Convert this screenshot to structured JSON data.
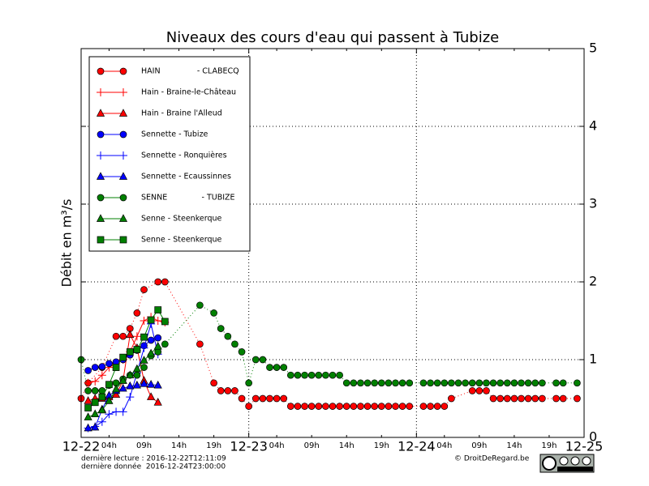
{
  "chart_data": {
    "type": "line",
    "title": "Niveaux des cours d'eau qui passent à Tubize",
    "ylabel": "Débit en m³/s",
    "xlim": [
      0,
      72
    ],
    "ylim": [
      0,
      5
    ],
    "xticks": [
      {
        "value": 0,
        "label": "12-22"
      },
      {
        "value": 24,
        "label": "12-23"
      },
      {
        "value": 48,
        "label": "12-24"
      },
      {
        "value": 72,
        "label": "12-25"
      }
    ],
    "xminorticks": [
      {
        "value": 4,
        "label": "04h"
      },
      {
        "value": 9,
        "label": "09h"
      },
      {
        "value": 14,
        "label": "14h"
      },
      {
        "value": 19,
        "label": "19h"
      },
      {
        "value": 28,
        "label": "04h"
      },
      {
        "value": 33,
        "label": "09h"
      },
      {
        "value": 38,
        "label": "14h"
      },
      {
        "value": 43,
        "label": "19h"
      },
      {
        "value": 52,
        "label": "04h"
      },
      {
        "value": 57,
        "label": "09h"
      },
      {
        "value": 62,
        "label": "14h"
      },
      {
        "value": 67,
        "label": "19h"
      }
    ],
    "yticks": [
      0,
      1,
      2,
      3,
      4,
      5
    ],
    "grid": true,
    "legend": "upper left",
    "series": [
      {
        "name": "HAIN               - CLABECQ",
        "color": "#ff0000",
        "marker": "o",
        "linestyle": "dotted",
        "x": [
          0,
          1,
          3,
          5,
          6,
          7,
          8,
          9,
          11,
          12,
          17,
          19,
          20,
          21,
          22,
          23,
          24,
          25,
          26,
          27,
          28,
          29,
          30,
          31,
          32,
          33,
          34,
          35,
          36,
          37,
          38,
          39,
          40,
          41,
          42,
          43,
          44,
          45,
          46,
          47,
          49,
          50,
          51,
          52,
          53,
          56,
          57,
          58,
          59,
          60,
          61,
          62,
          63,
          64,
          65,
          66,
          68,
          69,
          71
        ],
        "values": [
          0.5,
          0.7,
          0.9,
          1.3,
          1.3,
          1.4,
          1.6,
          1.9,
          2.0,
          2.0,
          1.2,
          0.7,
          0.6,
          0.6,
          0.6,
          0.5,
          0.4,
          0.5,
          0.5,
          0.5,
          0.5,
          0.5,
          0.4,
          0.4,
          0.4,
          0.4,
          0.4,
          0.4,
          0.4,
          0.4,
          0.4,
          0.4,
          0.4,
          0.4,
          0.4,
          0.4,
          0.4,
          0.4,
          0.4,
          0.4,
          0.4,
          0.4,
          0.4,
          0.4,
          0.5,
          0.6,
          0.6,
          0.6,
          0.5,
          0.5,
          0.5,
          0.5,
          0.5,
          0.5,
          0.5,
          0.5,
          0.5,
          0.5,
          0.5
        ]
      },
      {
        "name": "Hain - Braine-le-Château",
        "color": "#ff0000",
        "marker": "+",
        "linestyle": "solid",
        "x": [
          1,
          2,
          3,
          4,
          5,
          6,
          7,
          8,
          9,
          10,
          11,
          12
        ],
        "values": [
          0.7,
          0.72,
          0.8,
          0.9,
          0.95,
          1.0,
          1.1,
          1.3,
          1.5,
          1.55,
          1.5,
          1.48
        ]
      },
      {
        "name": "Hain - Braine l'Alleud",
        "color": "#ff0000",
        "marker": "^",
        "linestyle": "solid",
        "x": [
          1,
          2,
          3,
          4,
          5,
          6,
          7,
          8,
          9,
          10,
          11
        ],
        "values": [
          0.47,
          0.5,
          0.5,
          0.52,
          0.55,
          0.73,
          1.32,
          1.15,
          0.73,
          0.52,
          0.45
        ]
      },
      {
        "name": "Sennette - Tubize",
        "color": "#0000ff",
        "marker": "o",
        "linestyle": "solid",
        "x": [
          1,
          2,
          3,
          4,
          5,
          6,
          7,
          8,
          9,
          10,
          11
        ],
        "values": [
          0.86,
          0.9,
          0.91,
          0.95,
          0.97,
          1.0,
          1.06,
          1.12,
          1.18,
          1.25,
          1.28
        ]
      },
      {
        "name": "Sennette - Ronquières",
        "color": "#0000ff",
        "marker": "+",
        "linestyle": "solid",
        "x": [
          1,
          2,
          3,
          4,
          5,
          6,
          7,
          8,
          9,
          10,
          11
        ],
        "values": [
          0.12,
          0.14,
          0.2,
          0.3,
          0.33,
          0.33,
          0.52,
          0.83,
          1.15,
          1.46,
          1.07
        ]
      },
      {
        "name": "Sennette - Ecaussinnes",
        "color": "#0000ff",
        "marker": "^",
        "linestyle": "solid",
        "x": [
          1,
          2,
          3,
          4,
          5,
          6,
          7,
          8,
          9,
          10,
          11
        ],
        "values": [
          0.12,
          0.13,
          0.36,
          0.54,
          0.6,
          0.63,
          0.66,
          0.67,
          0.69,
          0.68,
          0.67
        ]
      },
      {
        "name": "SENNE              - TUBIZE",
        "color": "#008000",
        "marker": "o",
        "linestyle": "dotted",
        "x": [
          0,
          1,
          2,
          3,
          4,
          5,
          6,
          7,
          8,
          9,
          10,
          11,
          12,
          17,
          19,
          20,
          21,
          22,
          23,
          24,
          25,
          26,
          27,
          28,
          29,
          30,
          31,
          32,
          33,
          34,
          35,
          36,
          37,
          38,
          39,
          40,
          41,
          42,
          43,
          44,
          45,
          46,
          47,
          49,
          50,
          51,
          52,
          53,
          54,
          55,
          56,
          57,
          58,
          59,
          60,
          61,
          62,
          63,
          64,
          65,
          66,
          68,
          69,
          71
        ],
        "values": [
          1.0,
          0.6,
          0.6,
          0.6,
          0.67,
          0.7,
          0.75,
          0.8,
          0.8,
          0.9,
          1.05,
          1.1,
          1.2,
          1.7,
          1.6,
          1.4,
          1.3,
          1.2,
          1.1,
          0.7,
          1.0,
          1.0,
          0.9,
          0.9,
          0.9,
          0.8,
          0.8,
          0.8,
          0.8,
          0.8,
          0.8,
          0.8,
          0.8,
          0.7,
          0.7,
          0.7,
          0.7,
          0.7,
          0.7,
          0.7,
          0.7,
          0.7,
          0.7,
          0.7,
          0.7,
          0.7,
          0.7,
          0.7,
          0.7,
          0.7,
          0.7,
          0.7,
          0.7,
          0.7,
          0.7,
          0.7,
          0.7,
          0.7,
          0.7,
          0.7,
          0.7,
          0.7,
          0.7,
          0.7
        ]
      },
      {
        "name": "Senne - Steenkerque",
        "color": "#008000",
        "marker": "^",
        "linestyle": "solid",
        "x": [
          1,
          2,
          3,
          4,
          5,
          6,
          7,
          8,
          9,
          10,
          11
        ],
        "values": [
          0.26,
          0.3,
          0.35,
          0.47,
          0.62,
          0.73,
          0.8,
          0.88,
          0.99,
          1.08,
          1.17
        ]
      },
      {
        "name": "Senne - Steenkerque",
        "color": "#008000",
        "marker": "s",
        "linestyle": "solid",
        "x": [
          1,
          2,
          3,
          4,
          5,
          6,
          7,
          8,
          9,
          10,
          11,
          12
        ],
        "values": [
          0.38,
          0.45,
          0.52,
          0.68,
          0.9,
          1.03,
          1.1,
          1.13,
          1.29,
          1.51,
          1.64,
          1.49
        ]
      }
    ]
  },
  "footer": {
    "last_read": "dernière lecture : 2016-12-22T12:11:09",
    "last_data": "dernière donnée  2016-12-24T23:00:00",
    "credit": "© DroitDeRegard.be"
  }
}
